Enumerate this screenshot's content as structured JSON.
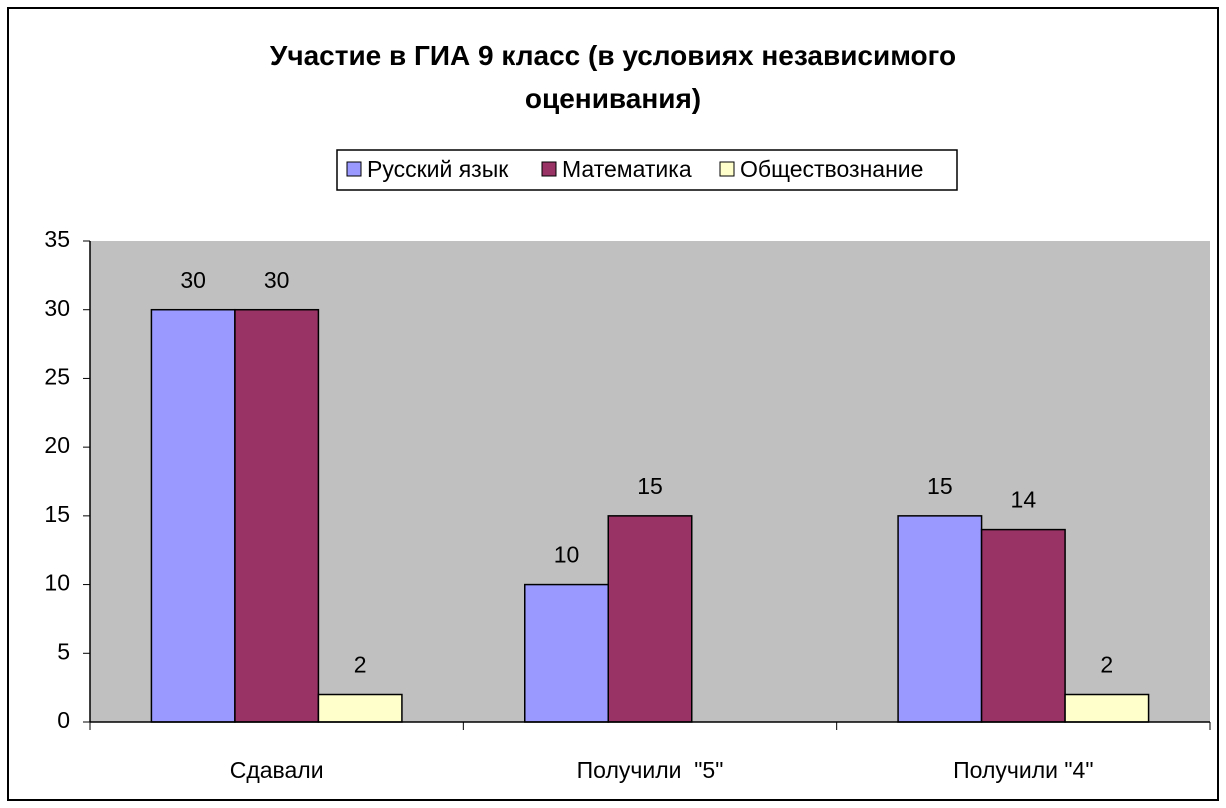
{
  "chart_data": {
    "type": "bar",
    "title": "Участие в ГИА 9 класс (в условиях независимого оценивания)",
    "categories": [
      "Сдавали",
      "Получили  \"5\"",
      "Получили \"4\""
    ],
    "series": [
      {
        "name": "Русский язык",
        "color": "#9999ff",
        "values": [
          30,
          10,
          15
        ]
      },
      {
        "name": "Математика",
        "color": "#993366",
        "values": [
          30,
          15,
          14
        ]
      },
      {
        "name": "Обществознание",
        "color": "#ffffcc",
        "values": [
          2,
          null,
          2
        ]
      }
    ],
    "ylim": [
      0,
      35
    ],
    "yticks": [
      0,
      5,
      10,
      15,
      20,
      25,
      30,
      35
    ],
    "legend": "top",
    "plot_background": "#c0c0c0"
  }
}
